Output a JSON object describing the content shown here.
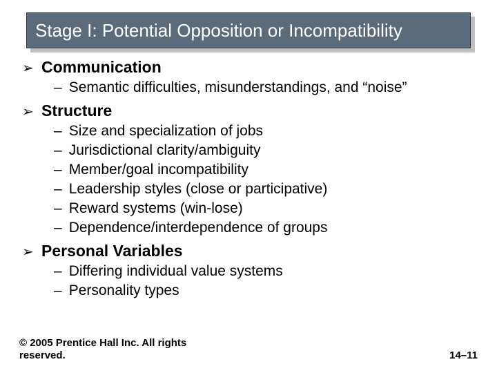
{
  "title": "Stage I: Potential Opposition or Incompatibility",
  "title_bg": "#5a6b7b",
  "title_border": "#2e3a44",
  "title_color": "#ffffff",
  "title_fontsize": 26,
  "shadow_color": "#c0c0c0",
  "lvl1_bullet": "➢",
  "lvl2_bullet": "–",
  "lvl1_fontsize": 23,
  "lvl2_fontsize": 21,
  "text_color": "#000000",
  "background_color": "#ffffff",
  "sections": {
    "0": {
      "label": "Communication",
      "items": {
        "0": "Semantic difficulties, misunderstandings, and “noise”"
      }
    },
    "1": {
      "label": "Structure",
      "items": {
        "0": "Size and specialization of jobs",
        "1": "Jurisdictional clarity/ambiguity",
        "2": "Member/goal incompatibility",
        "3": "Leadership styles (close or participative)",
        "4": "Reward systems (win-lose)",
        "5": "Dependence/interdependence of groups"
      }
    },
    "2": {
      "label": "Personal Variables",
      "items": {
        "0": "Differing individual value systems",
        "1": "Personality types"
      }
    }
  },
  "footer": {
    "copyright": "© 2005 Prentice Hall Inc. All rights reserved.",
    "pagenum": "14–11"
  },
  "footer_fontsize": 15
}
